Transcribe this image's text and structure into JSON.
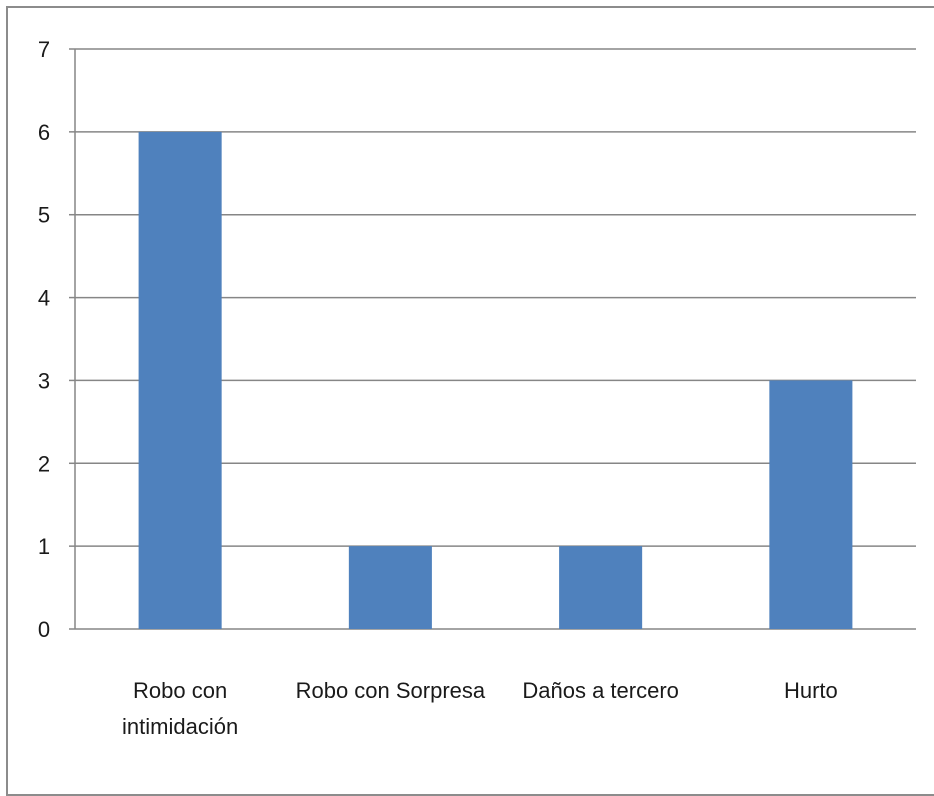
{
  "chart_data": {
    "type": "bar",
    "categories": [
      [
        "Robo con",
        "intimidación"
      ],
      [
        "Robo con Sorpresa"
      ],
      [
        "Daños a tercero"
      ],
      [
        "Hurto"
      ]
    ],
    "values": [
      6,
      1,
      1,
      3
    ],
    "y_ticks": [
      "0",
      "1",
      "2",
      "3",
      "4",
      "5",
      "6",
      "7"
    ],
    "ylim": [
      0,
      7
    ],
    "grid": true,
    "legend": "none",
    "bar_color": "#4f81bd",
    "grid_color": "#868686"
  }
}
